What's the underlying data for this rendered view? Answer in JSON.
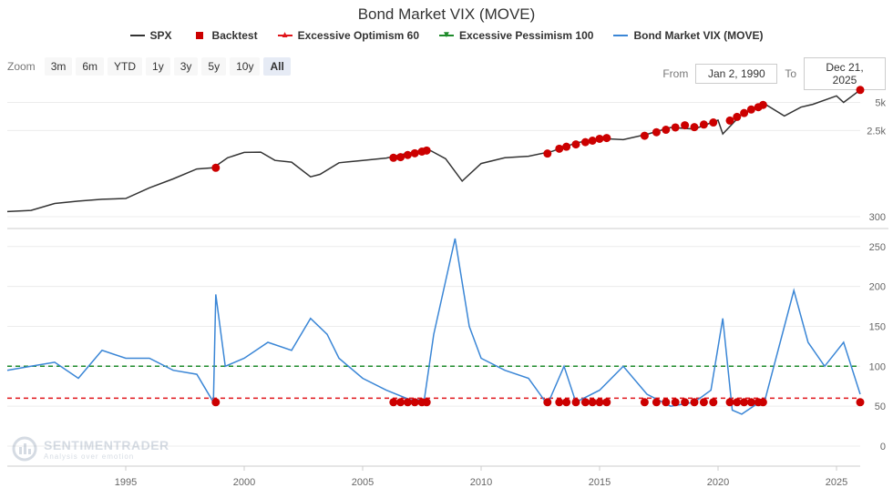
{
  "chart_data": {
    "type": "line",
    "title": "Bond Market VIX (MOVE)",
    "legend": [
      {
        "name": "SPX",
        "color": "#333333",
        "symbol": "line"
      },
      {
        "name": "Backtest",
        "color": "#cc0000",
        "symbol": "square"
      },
      {
        "name": "Excessive Optimism 60",
        "color": "#e0151b",
        "symbol": "triangle-up"
      },
      {
        "name": "Excessive Pessimism 100",
        "color": "#1e8b2b",
        "symbol": "triangle-down"
      },
      {
        "name": "Bond Market VIX (MOVE)",
        "color": "#3a86d6",
        "symbol": "line"
      }
    ],
    "x_ticks": [
      "1995",
      "2000",
      "2005",
      "2010",
      "2015",
      "2020",
      "2025"
    ],
    "x_range": [
      1990.0,
      2026.0
    ],
    "spx_axis": {
      "scale": "log",
      "ticks": [
        "300",
        "2.5k",
        "5k"
      ],
      "tick_values": [
        300,
        2500,
        5000
      ]
    },
    "move_axis": {
      "ticks": [
        "0",
        "50",
        "100",
        "150",
        "200",
        "250"
      ],
      "tick_values": [
        0,
        50,
        100,
        150,
        200,
        250
      ],
      "range": [
        0,
        260
      ]
    },
    "thresholds": {
      "excessive_optimism": 60,
      "excessive_pessimism": 100
    },
    "spx_series": [
      {
        "x": 1990.0,
        "y": 340
      },
      {
        "x": 1991.0,
        "y": 350
      },
      {
        "x": 1992.0,
        "y": 415
      },
      {
        "x": 1993.0,
        "y": 440
      },
      {
        "x": 1994.0,
        "y": 460
      },
      {
        "x": 1995.0,
        "y": 470
      },
      {
        "x": 1996.0,
        "y": 610
      },
      {
        "x": 1997.0,
        "y": 760
      },
      {
        "x": 1998.0,
        "y": 970
      },
      {
        "x": 1998.7,
        "y": 1000
      },
      {
        "x": 1999.3,
        "y": 1280
      },
      {
        "x": 2000.0,
        "y": 1460
      },
      {
        "x": 2000.7,
        "y": 1470
      },
      {
        "x": 2001.3,
        "y": 1200
      },
      {
        "x": 2002.0,
        "y": 1150
      },
      {
        "x": 2002.8,
        "y": 800
      },
      {
        "x": 2003.2,
        "y": 850
      },
      {
        "x": 2004.0,
        "y": 1130
      },
      {
        "x": 2005.0,
        "y": 1200
      },
      {
        "x": 2006.0,
        "y": 1270
      },
      {
        "x": 2007.0,
        "y": 1450
      },
      {
        "x": 2007.8,
        "y": 1560
      },
      {
        "x": 2008.5,
        "y": 1250
      },
      {
        "x": 2009.2,
        "y": 720
      },
      {
        "x": 2010.0,
        "y": 1110
      },
      {
        "x": 2011.0,
        "y": 1280
      },
      {
        "x": 2012.0,
        "y": 1330
      },
      {
        "x": 2013.0,
        "y": 1500
      },
      {
        "x": 2014.0,
        "y": 1840
      },
      {
        "x": 2015.0,
        "y": 2060
      },
      {
        "x": 2016.0,
        "y": 2000
      },
      {
        "x": 2017.0,
        "y": 2280
      },
      {
        "x": 2018.0,
        "y": 2700
      },
      {
        "x": 2019.0,
        "y": 2600
      },
      {
        "x": 2020.0,
        "y": 3230
      },
      {
        "x": 2020.2,
        "y": 2300
      },
      {
        "x": 2021.0,
        "y": 3750
      },
      {
        "x": 2022.0,
        "y": 4770
      },
      {
        "x": 2022.8,
        "y": 3580
      },
      {
        "x": 2023.5,
        "y": 4450
      },
      {
        "x": 2024.0,
        "y": 4770
      },
      {
        "x": 2025.0,
        "y": 5880
      },
      {
        "x": 2025.3,
        "y": 5000
      },
      {
        "x": 2026.0,
        "y": 6800
      }
    ],
    "move_series": [
      {
        "x": 1990.0,
        "y": 95
      },
      {
        "x": 1991.0,
        "y": 100
      },
      {
        "x": 1992.0,
        "y": 105
      },
      {
        "x": 1993.0,
        "y": 85
      },
      {
        "x": 1994.0,
        "y": 120
      },
      {
        "x": 1995.0,
        "y": 110
      },
      {
        "x": 1996.0,
        "y": 110
      },
      {
        "x": 1997.0,
        "y": 95
      },
      {
        "x": 1998.0,
        "y": 90
      },
      {
        "x": 1998.7,
        "y": 55
      },
      {
        "x": 1998.8,
        "y": 190
      },
      {
        "x": 1999.2,
        "y": 100
      },
      {
        "x": 2000.0,
        "y": 110
      },
      {
        "x": 2001.0,
        "y": 130
      },
      {
        "x": 2002.0,
        "y": 120
      },
      {
        "x": 2002.8,
        "y": 160
      },
      {
        "x": 2003.5,
        "y": 140
      },
      {
        "x": 2004.0,
        "y": 110
      },
      {
        "x": 2005.0,
        "y": 85
      },
      {
        "x": 2006.0,
        "y": 70
      },
      {
        "x": 2007.0,
        "y": 58
      },
      {
        "x": 2007.6,
        "y": 58
      },
      {
        "x": 2008.0,
        "y": 140
      },
      {
        "x": 2008.9,
        "y": 260
      },
      {
        "x": 2009.5,
        "y": 150
      },
      {
        "x": 2010.0,
        "y": 110
      },
      {
        "x": 2011.0,
        "y": 95
      },
      {
        "x": 2012.0,
        "y": 85
      },
      {
        "x": 2012.8,
        "y": 52
      },
      {
        "x": 2013.5,
        "y": 100
      },
      {
        "x": 2014.0,
        "y": 55
      },
      {
        "x": 2015.0,
        "y": 70
      },
      {
        "x": 2016.0,
        "y": 100
      },
      {
        "x": 2017.0,
        "y": 65
      },
      {
        "x": 2018.0,
        "y": 50
      },
      {
        "x": 2019.0,
        "y": 55
      },
      {
        "x": 2019.7,
        "y": 70
      },
      {
        "x": 2020.2,
        "y": 160
      },
      {
        "x": 2020.6,
        "y": 45
      },
      {
        "x": 2021.0,
        "y": 40
      },
      {
        "x": 2022.0,
        "y": 60
      },
      {
        "x": 2022.8,
        "y": 150
      },
      {
        "x": 2023.2,
        "y": 195
      },
      {
        "x": 2023.8,
        "y": 130
      },
      {
        "x": 2024.5,
        "y": 100
      },
      {
        "x": 2025.3,
        "y": 130
      },
      {
        "x": 2026.0,
        "y": 65
      }
    ],
    "backtest_signals": [
      {
        "x": 1998.8,
        "spx": 1000,
        "move": 55
      },
      {
        "x": 2006.3,
        "spx": 1280,
        "move": 55
      },
      {
        "x": 2006.6,
        "spx": 1300,
        "move": 55
      },
      {
        "x": 2006.9,
        "spx": 1370,
        "move": 55
      },
      {
        "x": 2007.2,
        "spx": 1430,
        "move": 55
      },
      {
        "x": 2007.5,
        "spx": 1490,
        "move": 55
      },
      {
        "x": 2007.7,
        "spx": 1530,
        "move": 55
      },
      {
        "x": 2012.8,
        "spx": 1420,
        "move": 55
      },
      {
        "x": 2013.3,
        "spx": 1600,
        "move": 55
      },
      {
        "x": 2013.6,
        "spx": 1680,
        "move": 55
      },
      {
        "x": 2014.0,
        "spx": 1780,
        "move": 55
      },
      {
        "x": 2014.4,
        "spx": 1880,
        "move": 55
      },
      {
        "x": 2014.7,
        "spx": 1950,
        "move": 55
      },
      {
        "x": 2015.0,
        "spx": 2040,
        "move": 55
      },
      {
        "x": 2015.3,
        "spx": 2080,
        "move": 55
      },
      {
        "x": 2016.9,
        "spx": 2200,
        "move": 55
      },
      {
        "x": 2017.4,
        "spx": 2400,
        "move": 55
      },
      {
        "x": 2017.8,
        "spx": 2550,
        "move": 55
      },
      {
        "x": 2018.2,
        "spx": 2700,
        "move": 55
      },
      {
        "x": 2018.6,
        "spx": 2850,
        "move": 55
      },
      {
        "x": 2019.0,
        "spx": 2720,
        "move": 55
      },
      {
        "x": 2019.4,
        "spx": 2900,
        "move": 55
      },
      {
        "x": 2019.8,
        "spx": 3050,
        "move": 55
      },
      {
        "x": 2020.5,
        "spx": 3200,
        "move": 55
      },
      {
        "x": 2020.8,
        "spx": 3500,
        "move": 55
      },
      {
        "x": 2021.1,
        "spx": 3850,
        "move": 55
      },
      {
        "x": 2021.4,
        "spx": 4200,
        "move": 55
      },
      {
        "x": 2021.7,
        "spx": 4450,
        "move": 55
      },
      {
        "x": 2021.9,
        "spx": 4700,
        "move": 55
      },
      {
        "x": 2026.0,
        "spx": 6800,
        "move": 55
      }
    ]
  },
  "zoom": {
    "label": "Zoom",
    "buttons": [
      "3m",
      "6m",
      "YTD",
      "1y",
      "3y",
      "5y",
      "10y",
      "All"
    ],
    "active": "All"
  },
  "range": {
    "from_label": "From",
    "from_value": "Jan 2, 1990",
    "to_label": "To",
    "to_value": "Dec 21, 2025"
  },
  "watermark": {
    "name": "SENTIMENTRADER",
    "tagline": "Analysis over emotion"
  }
}
